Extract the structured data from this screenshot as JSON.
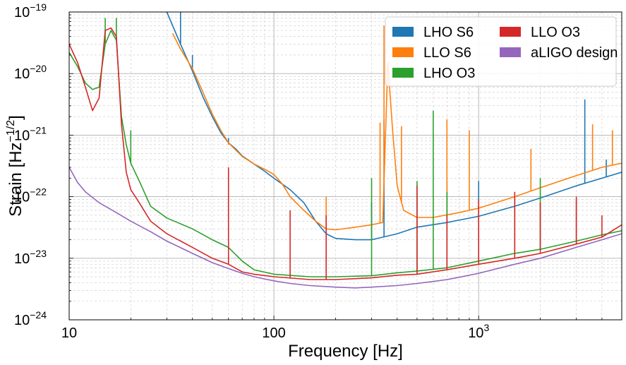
{
  "chart_data": {
    "type": "line",
    "title": "",
    "xlabel": "Frequency [Hz]",
    "ylabel": "Strain [Hz⁻¹ᐟ²]",
    "ylabel_parts": {
      "main": "Strain [Hz",
      "sup": "−1/2",
      "close": "]"
    },
    "x_scale": "log",
    "y_scale": "log",
    "xlim": [
      10,
      5000
    ],
    "ylim": [
      1e-24,
      1e-19
    ],
    "grid": true,
    "legend": {
      "placement": "top-right",
      "columns": 2
    },
    "x_ticks": [
      {
        "value": 10,
        "label": "10"
      },
      {
        "value": 100,
        "label": "100"
      },
      {
        "value": 1000,
        "base": "10",
        "exp": "3"
      }
    ],
    "y_ticks": [
      {
        "value": 1e-24,
        "base": "10",
        "exp": "−24"
      },
      {
        "value": 1e-23,
        "base": "10",
        "exp": "−23"
      },
      {
        "value": 1e-22,
        "base": "10",
        "exp": "−22"
      },
      {
        "value": 1e-21,
        "base": "10",
        "exp": "−21"
      },
      {
        "value": 1e-20,
        "base": "10",
        "exp": "−20"
      },
      {
        "value": 1e-19,
        "base": "10",
        "exp": "−19"
      }
    ],
    "series": [
      {
        "name": "LHO S6",
        "color": "#1f77b4",
        "points": [
          [
            30,
            1e-19
          ],
          [
            35,
            3e-20
          ],
          [
            40,
            1.1e-20
          ],
          [
            45,
            4.2e-21
          ],
          [
            50,
            2e-21
          ],
          [
            55,
            1.1e-21
          ],
          [
            60,
            7.5e-22
          ],
          [
            65,
            6e-22
          ],
          [
            70,
            4.6e-22
          ],
          [
            80,
            3.4e-22
          ],
          [
            90,
            2.6e-22
          ],
          [
            100,
            2e-22
          ],
          [
            120,
            1.3e-22
          ],
          [
            140,
            8e-23
          ],
          [
            160,
            4e-23
          ],
          [
            180,
            2.5e-23
          ],
          [
            200,
            2.1e-23
          ],
          [
            250,
            2e-23
          ],
          [
            300,
            2e-23
          ],
          [
            400,
            2.5e-23
          ],
          [
            500,
            3.2e-23
          ],
          [
            700,
            3.8e-23
          ],
          [
            1000,
            4.8e-23
          ],
          [
            1500,
            7e-23
          ],
          [
            2000,
            9.5e-23
          ],
          [
            3000,
            1.5e-22
          ],
          [
            4000,
            2e-22
          ],
          [
            5000,
            2.5e-22
          ]
        ],
        "spikes": [
          [
            35,
            1e-19
          ],
          [
            40,
            2e-20
          ],
          [
            60,
            9e-22
          ],
          [
            300,
            8e-23
          ],
          [
            345,
            1.8e-21
          ],
          [
            700,
            1.8e-22
          ],
          [
            1000,
            1.8e-22
          ],
          [
            3300,
            3.8e-21
          ],
          [
            4200,
            4e-22
          ]
        ]
      },
      {
        "name": "LLO S6",
        "color": "#ff7f0e",
        "points": [
          [
            32,
            4.5e-20
          ],
          [
            35,
            2.5e-20
          ],
          [
            40,
            1.2e-20
          ],
          [
            45,
            5e-21
          ],
          [
            50,
            2.2e-21
          ],
          [
            55,
            1.2e-21
          ],
          [
            60,
            7.5e-22
          ],
          [
            70,
            4.5e-22
          ],
          [
            80,
            3.4e-22
          ],
          [
            90,
            2.8e-22
          ],
          [
            100,
            2.3e-22
          ],
          [
            110,
            1.6e-22
          ],
          [
            120,
            1e-22
          ],
          [
            140,
            6e-23
          ],
          [
            160,
            4e-23
          ],
          [
            180,
            3e-23
          ],
          [
            200,
            2.9e-23
          ],
          [
            250,
            3.2e-23
          ],
          [
            300,
            3.5e-23
          ],
          [
            340,
            3.8e-23
          ],
          [
            360,
            1.5e-20
          ],
          [
            380,
            1.2e-21
          ],
          [
            400,
            1.5e-22
          ],
          [
            430,
            6e-23
          ],
          [
            500,
            4.6e-23
          ],
          [
            600,
            4.6e-23
          ],
          [
            800,
            5.5e-23
          ],
          [
            1000,
            6.5e-23
          ],
          [
            1500,
            1e-22
          ],
          [
            2000,
            1.4e-22
          ],
          [
            3000,
            2.2e-22
          ],
          [
            4000,
            3e-22
          ],
          [
            5000,
            3.5e-22
          ]
        ],
        "spikes": [
          [
            60,
            7e-22
          ],
          [
            120,
            1e-22
          ],
          [
            180,
            1e-22
          ],
          [
            330,
            1.6e-21
          ],
          [
            345,
            6e-20
          ],
          [
            420,
            1.4e-21
          ],
          [
            700,
            1.8e-21
          ],
          [
            900,
            1.2e-21
          ],
          [
            1800,
            6e-22
          ],
          [
            3600,
            1.5e-21
          ],
          [
            4500,
            1.2e-21
          ]
        ]
      },
      {
        "name": "LHO O3",
        "color": "#2ca02c",
        "points": [
          [
            10,
            2.2e-20
          ],
          [
            11,
            1.3e-20
          ],
          [
            12,
            7e-21
          ],
          [
            13,
            5.5e-21
          ],
          [
            14,
            6e-21
          ],
          [
            15,
            3e-20
          ],
          [
            16,
            5e-20
          ],
          [
            17,
            3.5e-20
          ],
          [
            18,
            2e-21
          ],
          [
            19,
            7e-22
          ],
          [
            20,
            3.5e-22
          ],
          [
            22,
            1.8e-22
          ],
          [
            25,
            7e-23
          ],
          [
            30,
            4.5e-23
          ],
          [
            40,
            3e-23
          ],
          [
            50,
            2e-23
          ],
          [
            60,
            1.5e-23
          ],
          [
            70,
            9e-24
          ],
          [
            80,
            6.5e-24
          ],
          [
            100,
            5.5e-24
          ],
          [
            150,
            5e-24
          ],
          [
            200,
            5e-24
          ],
          [
            300,
            5.2e-24
          ],
          [
            400,
            5.8e-24
          ],
          [
            500,
            6.2e-24
          ],
          [
            700,
            7e-24
          ],
          [
            1000,
            9e-24
          ],
          [
            1500,
            1.2e-23
          ],
          [
            2000,
            1.4e-23
          ],
          [
            3000,
            1.9e-23
          ],
          [
            4000,
            2.4e-23
          ],
          [
            5000,
            2.8e-23
          ]
        ],
        "spikes": [
          [
            15,
            8e-20
          ],
          [
            17,
            8e-20
          ],
          [
            20,
            1.2e-21
          ],
          [
            60,
            1.6e-23
          ],
          [
            300,
            2e-22
          ],
          [
            500,
            1.8e-22
          ],
          [
            600,
            2.5e-21
          ],
          [
            700,
            1.2e-22
          ],
          [
            1000,
            6e-23
          ],
          [
            1500,
            1e-22
          ],
          [
            2000,
            2e-22
          ],
          [
            3000,
            9e-23
          ]
        ]
      },
      {
        "name": "LLO O3",
        "color": "#d62728",
        "points": [
          [
            10,
            3e-20
          ],
          [
            11,
            1.5e-20
          ],
          [
            12,
            6e-21
          ],
          [
            13,
            2.5e-21
          ],
          [
            14,
            4e-21
          ],
          [
            15,
            5e-20
          ],
          [
            16,
            5.5e-20
          ],
          [
            17,
            4e-20
          ],
          [
            18,
            1.5e-21
          ],
          [
            19,
            2.5e-22
          ],
          [
            20,
            1.3e-22
          ],
          [
            22,
            8e-23
          ],
          [
            25,
            4e-23
          ],
          [
            30,
            2.5e-23
          ],
          [
            40,
            1.5e-23
          ],
          [
            50,
            1e-23
          ],
          [
            60,
            8e-24
          ],
          [
            70,
            6e-24
          ],
          [
            80,
            5.5e-24
          ],
          [
            100,
            5e-24
          ],
          [
            150,
            4.5e-24
          ],
          [
            200,
            4.5e-24
          ],
          [
            300,
            4.8e-24
          ],
          [
            400,
            5.3e-24
          ],
          [
            500,
            5.5e-24
          ],
          [
            700,
            6.5e-24
          ],
          [
            1000,
            8e-24
          ],
          [
            1500,
            1e-23
          ],
          [
            2000,
            1.2e-23
          ],
          [
            3000,
            1.7e-23
          ],
          [
            4000,
            2.2e-23
          ],
          [
            5000,
            3.5e-23
          ]
        ],
        "spikes": [
          [
            60,
            3e-22
          ],
          [
            120,
            6e-23
          ],
          [
            180,
            5e-23
          ],
          [
            500,
            1.5e-22
          ],
          [
            700,
            5e-23
          ],
          [
            1000,
            9e-23
          ],
          [
            1500,
            1.2e-22
          ],
          [
            2000,
            8e-23
          ],
          [
            3000,
            1e-22
          ],
          [
            4000,
            5e-23
          ]
        ]
      },
      {
        "name": "aLIGO design",
        "color": "#9467bd",
        "points": [
          [
            10,
            3e-22
          ],
          [
            11,
            1.7e-22
          ],
          [
            12,
            1.2e-22
          ],
          [
            14,
            8e-23
          ],
          [
            17,
            5.5e-23
          ],
          [
            20,
            4e-23
          ],
          [
            25,
            2.7e-23
          ],
          [
            30,
            1.9e-23
          ],
          [
            40,
            1.2e-23
          ],
          [
            50,
            8.5e-24
          ],
          [
            60,
            6.8e-24
          ],
          [
            70,
            5.7e-24
          ],
          [
            80,
            5e-24
          ],
          [
            100,
            4.3e-24
          ],
          [
            120,
            3.9e-24
          ],
          [
            150,
            3.6e-24
          ],
          [
            200,
            3.4e-24
          ],
          [
            250,
            3.3e-24
          ],
          [
            300,
            3.4e-24
          ],
          [
            400,
            3.6e-24
          ],
          [
            500,
            3.9e-24
          ],
          [
            600,
            4.2e-24
          ],
          [
            700,
            4.5e-24
          ],
          [
            800,
            4.9e-24
          ],
          [
            1000,
            5.7e-24
          ],
          [
            1500,
            8e-24
          ],
          [
            2000,
            1e-23
          ],
          [
            3000,
            1.5e-23
          ],
          [
            4000,
            2e-23
          ],
          [
            5000,
            2.5e-23
          ]
        ],
        "spikes": []
      }
    ]
  }
}
